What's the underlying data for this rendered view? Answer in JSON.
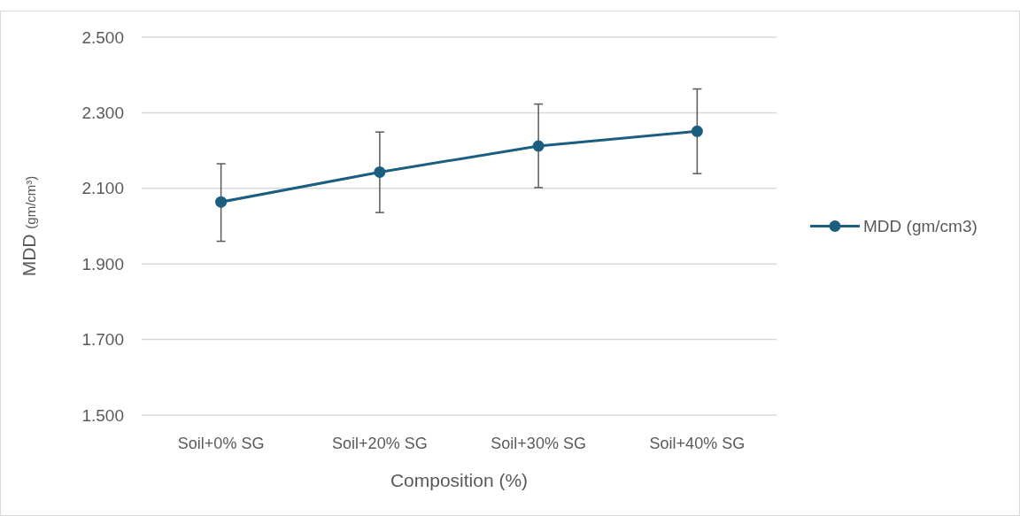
{
  "chart_data": {
    "type": "line",
    "xlabel": "Composition (%)",
    "ylabel": "MDD (gm/cm³)",
    "categories": [
      "Soil+0% SG",
      "Soil+20% SG",
      "Soil+30% SG",
      "Soil+40% SG"
    ],
    "series": [
      {
        "name": "MDD (gm/cm3)",
        "color": "#1b5e80",
        "values": [
          2.064,
          2.143,
          2.212,
          2.251
        ],
        "errors": [
          [
            1.96,
            2.165
          ],
          [
            2.036,
            2.249
          ],
          [
            2.102,
            2.323
          ],
          [
            2.139,
            2.363
          ]
        ]
      }
    ],
    "ylim": [
      1.5,
      2.5
    ],
    "yticks": [
      {
        "value": 1.5,
        "label": "1.500"
      },
      {
        "value": 1.7,
        "label": "1.700"
      },
      {
        "value": 1.9,
        "label": "1.900"
      },
      {
        "value": 2.1,
        "label": "2.100"
      },
      {
        "value": 2.3,
        "label": "2.300"
      },
      {
        "value": 2.5,
        "label": "2.500"
      }
    ],
    "grid": "y",
    "legend": "right",
    "marker": "circle",
    "line_style": "solid"
  }
}
